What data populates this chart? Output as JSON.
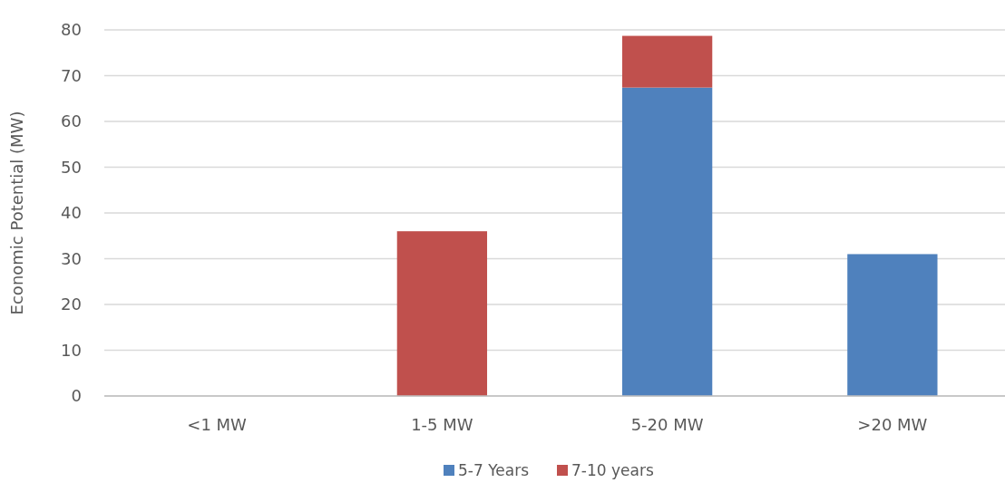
{
  "chart_data": {
    "type": "bar",
    "stacked": true,
    "ylabel": "Economic Potential (MW)",
    "categories": [
      "<1 MW",
      "1-5 MW",
      "5-20 MW",
      ">20 MW"
    ],
    "series": [
      {
        "name": "5-7 Years",
        "color": "#4f81bd",
        "values": [
          0,
          0,
          67.4,
          31
        ]
      },
      {
        "name": "7-10 years",
        "color": "#c0504d",
        "values": [
          0,
          36,
          11.3,
          0
        ]
      }
    ],
    "ylim": [
      0,
      80
    ],
    "yticks": [
      0,
      10,
      20,
      30,
      40,
      50,
      60,
      70,
      80
    ],
    "grid": "y",
    "legend": "bottom"
  }
}
